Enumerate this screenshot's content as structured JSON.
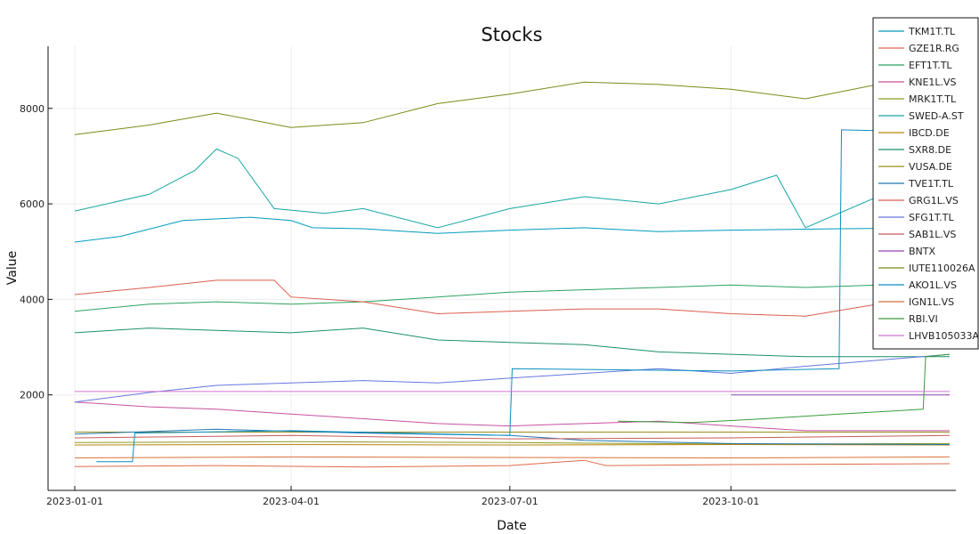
{
  "chart_data": {
    "type": "line",
    "title": "Stocks",
    "xlabel": "Date",
    "ylabel": "Value",
    "x_range": [
      "2023-01-01",
      "2023-12-31"
    ],
    "x_ticks": [
      "2023-01-01",
      "2023-04-01",
      "2023-07-01",
      "2023-10-01"
    ],
    "ylim": [
      0,
      9300
    ],
    "y_ticks": [
      2000,
      4000,
      6000,
      8000
    ],
    "grid": true,
    "legend_position": "top-right",
    "series": [
      {
        "name": "TKM1T.TL",
        "color": "#009bbd",
        "points": [
          [
            "2023-01-01",
            5200
          ],
          [
            "2023-01-20",
            5320
          ],
          [
            "2023-02-15",
            5650
          ],
          [
            "2023-03-15",
            5720
          ],
          [
            "2023-04-01",
            5650
          ],
          [
            "2023-04-10",
            5500
          ],
          [
            "2023-05-01",
            5480
          ],
          [
            "2023-06-01",
            5380
          ],
          [
            "2023-07-01",
            5450
          ],
          [
            "2023-08-01",
            5500
          ],
          [
            "2023-09-01",
            5420
          ],
          [
            "2023-10-01",
            5450
          ],
          [
            "2023-11-15",
            5480
          ],
          [
            "2023-12-31",
            5500
          ]
        ]
      },
      {
        "name": "GZE1R.RG",
        "color": "#e06b4a",
        "points": [
          [
            "2023-01-01",
            500
          ],
          [
            "2023-03-01",
            520
          ],
          [
            "2023-05-01",
            490
          ],
          [
            "2023-07-01",
            520
          ],
          [
            "2023-08-01",
            630
          ],
          [
            "2023-08-10",
            520
          ],
          [
            "2023-10-01",
            540
          ],
          [
            "2023-12-31",
            560
          ]
        ]
      },
      {
        "name": "EFT1T.TL",
        "color": "#2ca25f",
        "points": [
          [
            "2023-01-01",
            3750
          ],
          [
            "2023-02-01",
            3900
          ],
          [
            "2023-03-01",
            3950
          ],
          [
            "2023-04-01",
            3900
          ],
          [
            "2023-05-01",
            3950
          ],
          [
            "2023-06-01",
            4050
          ],
          [
            "2023-07-01",
            4150
          ],
          [
            "2023-08-01",
            4200
          ],
          [
            "2023-09-01",
            4250
          ],
          [
            "2023-10-01",
            4300
          ],
          [
            "2023-11-01",
            4250
          ],
          [
            "2023-12-31",
            4350
          ]
        ]
      },
      {
        "name": "KNE1L.VS",
        "color": "#c8519e",
        "points": [
          [
            "2023-01-01",
            1850
          ],
          [
            "2023-02-01",
            1750
          ],
          [
            "2023-03-01",
            1700
          ],
          [
            "2023-04-01",
            1600
          ],
          [
            "2023-05-01",
            1500
          ],
          [
            "2023-06-01",
            1400
          ],
          [
            "2023-07-01",
            1350
          ],
          [
            "2023-08-01",
            1400
          ],
          [
            "2023-09-01",
            1450
          ],
          [
            "2023-10-01",
            1350
          ],
          [
            "2023-11-01",
            1250
          ],
          [
            "2023-12-31",
            1250
          ]
        ]
      },
      {
        "name": "MRK1T.TL",
        "color": "#8a9a1d",
        "points": [
          [
            "2023-01-01",
            1000
          ],
          [
            "2023-04-01",
            1020
          ],
          [
            "2023-07-01",
            1000
          ],
          [
            "2023-10-01",
            970
          ],
          [
            "2023-12-31",
            980
          ]
        ]
      },
      {
        "name": "SWED-A.ST",
        "color": "#18a5a5",
        "points": [
          [
            "2023-01-01",
            5850
          ],
          [
            "2023-02-01",
            6200
          ],
          [
            "2023-02-20",
            6700
          ],
          [
            "2023-03-01",
            7150
          ],
          [
            "2023-03-10",
            6950
          ],
          [
            "2023-03-25",
            5900
          ],
          [
            "2023-04-15",
            5800
          ],
          [
            "2023-05-01",
            5900
          ],
          [
            "2023-06-01",
            5500
          ],
          [
            "2023-07-01",
            5900
          ],
          [
            "2023-08-01",
            6150
          ],
          [
            "2023-09-01",
            6000
          ],
          [
            "2023-10-01",
            6300
          ],
          [
            "2023-10-20",
            6600
          ],
          [
            "2023-11-01",
            5500
          ],
          [
            "2023-12-01",
            6150
          ],
          [
            "2023-12-31",
            6000
          ]
        ]
      },
      {
        "name": "IBCD.DE",
        "color": "#b8860b",
        "points": [
          [
            "2023-01-01",
            950
          ],
          [
            "2023-04-01",
            960
          ],
          [
            "2023-07-01",
            950
          ],
          [
            "2023-10-01",
            960
          ],
          [
            "2023-12-31",
            950
          ]
        ]
      },
      {
        "name": "SXR8.DE",
        "color": "#1b8f6e",
        "points": [
          [
            "2023-01-01",
            3300
          ],
          [
            "2023-02-01",
            3400
          ],
          [
            "2023-03-01",
            3350
          ],
          [
            "2023-04-01",
            3300
          ],
          [
            "2023-05-01",
            3400
          ],
          [
            "2023-06-01",
            3150
          ],
          [
            "2023-07-01",
            3100
          ],
          [
            "2023-08-01",
            3050
          ],
          [
            "2023-09-01",
            2900
          ],
          [
            "2023-10-01",
            2850
          ],
          [
            "2023-11-01",
            2800
          ],
          [
            "2023-12-31",
            2800
          ]
        ]
      },
      {
        "name": "VUSA.DE",
        "color": "#9e8d1c",
        "points": [
          [
            "2023-01-01",
            1220
          ],
          [
            "2023-04-01",
            1220
          ],
          [
            "2023-07-01",
            1220
          ],
          [
            "2023-10-01",
            1220
          ],
          [
            "2023-12-31",
            1220
          ]
        ]
      },
      {
        "name": "TVE1T.TL",
        "color": "#1f78b4",
        "points": [
          [
            "2023-01-01",
            1180
          ],
          [
            "2023-03-01",
            1280
          ],
          [
            "2023-05-01",
            1200
          ],
          [
            "2023-07-01",
            1150
          ],
          [
            "2023-08-01",
            1050
          ],
          [
            "2023-10-01",
            980
          ],
          [
            "2023-12-31",
            960
          ]
        ]
      },
      {
        "name": "GRG1L.VS",
        "color": "#d95f4e",
        "points": [
          [
            "2023-01-01",
            4100
          ],
          [
            "2023-02-01",
            4250
          ],
          [
            "2023-03-01",
            4400
          ],
          [
            "2023-03-25",
            4400
          ],
          [
            "2023-04-01",
            4050
          ],
          [
            "2023-05-01",
            3950
          ],
          [
            "2023-06-01",
            3700
          ],
          [
            "2023-07-01",
            3750
          ],
          [
            "2023-08-01",
            3800
          ],
          [
            "2023-09-01",
            3800
          ],
          [
            "2023-10-01",
            3700
          ],
          [
            "2023-11-01",
            3650
          ],
          [
            "2023-12-01",
            3900
          ],
          [
            "2023-12-31",
            4050
          ]
        ]
      },
      {
        "name": "SFG1T.TL",
        "color": "#6577e0",
        "points": [
          [
            "2023-01-01",
            1850
          ],
          [
            "2023-02-01",
            2050
          ],
          [
            "2023-03-01",
            2200
          ],
          [
            "2023-04-01",
            2250
          ],
          [
            "2023-05-01",
            2300
          ],
          [
            "2023-06-01",
            2250
          ],
          [
            "2023-07-01",
            2350
          ],
          [
            "2023-08-01",
            2450
          ],
          [
            "2023-09-01",
            2550
          ],
          [
            "2023-10-01",
            2450
          ],
          [
            "2023-11-01",
            2600
          ],
          [
            "2023-12-31",
            2850
          ]
        ]
      },
      {
        "name": "SAB1L.VS",
        "color": "#c75b5b",
        "points": [
          [
            "2023-01-01",
            1100
          ],
          [
            "2023-04-01",
            1150
          ],
          [
            "2023-07-01",
            1080
          ],
          [
            "2023-10-01",
            1100
          ],
          [
            "2023-12-31",
            1150
          ]
        ]
      },
      {
        "name": "BNTX",
        "color": "#8e44ad",
        "points": [
          [
            "2023-10-01",
            2000
          ],
          [
            "2023-12-31",
            2000
          ]
        ]
      },
      {
        "name": "IUTE110026A",
        "color": "#7a8b1a",
        "points": [
          [
            "2023-01-01",
            7450
          ],
          [
            "2023-02-01",
            7650
          ],
          [
            "2023-03-01",
            7900
          ],
          [
            "2023-04-01",
            7600
          ],
          [
            "2023-05-01",
            7700
          ],
          [
            "2023-06-01",
            8100
          ],
          [
            "2023-07-01",
            8300
          ],
          [
            "2023-08-01",
            8550
          ],
          [
            "2023-09-01",
            8500
          ],
          [
            "2023-10-01",
            8400
          ],
          [
            "2023-11-01",
            8200
          ],
          [
            "2023-12-01",
            8500
          ],
          [
            "2023-12-31",
            8600
          ]
        ]
      },
      {
        "name": "AKO1L.VS",
        "color": "#0a8fbf",
        "points": [
          [
            "2023-01-10",
            600
          ],
          [
            "2023-01-25",
            600
          ],
          [
            "2023-01-26",
            1200
          ],
          [
            "2023-04-01",
            1250
          ],
          [
            "2023-07-01",
            1150
          ],
          [
            "2023-07-02",
            2550
          ],
          [
            "2023-10-01",
            2500
          ],
          [
            "2023-11-15",
            2550
          ],
          [
            "2023-11-16",
            7550
          ],
          [
            "2023-12-31",
            7500
          ]
        ]
      },
      {
        "name": "IGN1L.VS",
        "color": "#d9733a",
        "points": [
          [
            "2023-01-01",
            680
          ],
          [
            "2023-04-01",
            700
          ],
          [
            "2023-07-01",
            690
          ],
          [
            "2023-10-01",
            680
          ],
          [
            "2023-12-31",
            700
          ]
        ]
      },
      {
        "name": "RBI.VI",
        "color": "#3a9a3a",
        "points": [
          [
            "2023-08-15",
            1450
          ],
          [
            "2023-09-15",
            1420
          ],
          [
            "2023-10-15",
            1500
          ],
          [
            "2023-11-15",
            1600
          ],
          [
            "2023-12-20",
            1700
          ],
          [
            "2023-12-21",
            2800
          ],
          [
            "2023-12-31",
            2850
          ]
        ]
      },
      {
        "name": "LHVB105033A",
        "color": "#d070d0",
        "points": [
          [
            "2023-01-01",
            2070
          ],
          [
            "2023-12-31",
            2070
          ]
        ]
      }
    ]
  }
}
